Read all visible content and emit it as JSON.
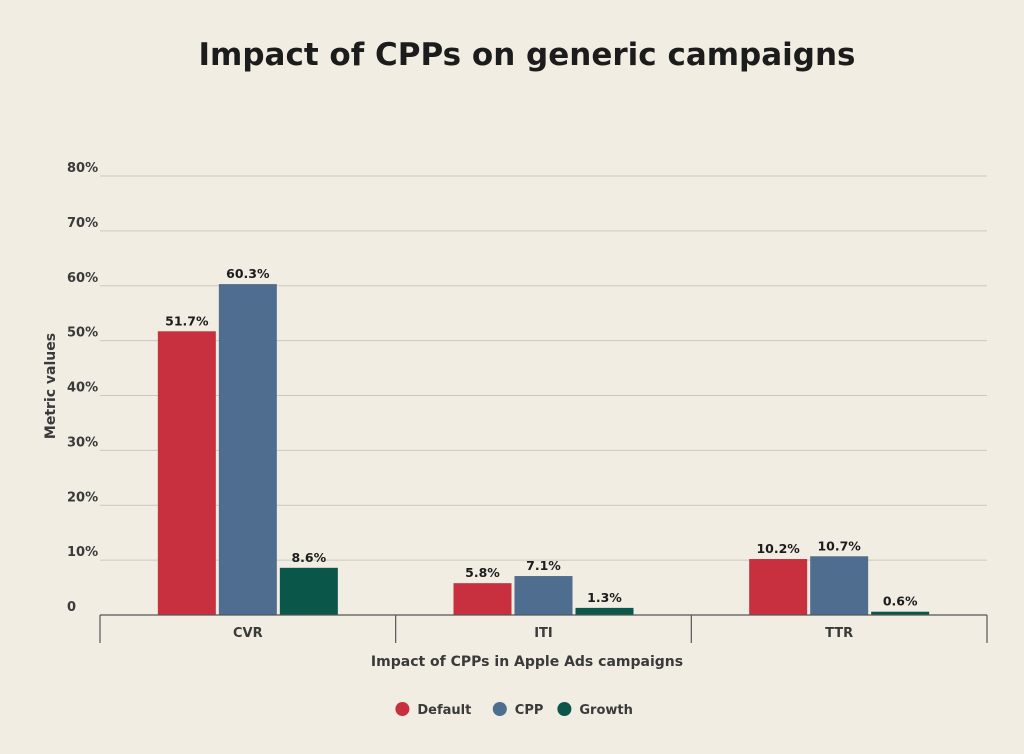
{
  "chart_data": {
    "type": "bar",
    "title": "Impact of CPPs on generic campaigns",
    "xlabel": "Impact of CPPs in Apple Ads campaigns",
    "ylabel": "Metric values",
    "categories": [
      "CVR",
      "ITI",
      "TTR"
    ],
    "y_ticks": [
      "0",
      "10%",
      "20%",
      "30%",
      "40%",
      "50%",
      "60%",
      "70%",
      "80%"
    ],
    "ylim": [
      0,
      80
    ],
    "grid": true,
    "legend_position": "bottom-center",
    "series": [
      {
        "name": "Default",
        "color": "#c8303f",
        "values": [
          51.7,
          5.8,
          10.2
        ],
        "labels": [
          "51.7%",
          "5.8%",
          "10.2%"
        ]
      },
      {
        "name": "CPP",
        "color": "#4f6d8f",
        "values": [
          60.3,
          7.1,
          10.7
        ],
        "labels": [
          "60.3%",
          "7.1%",
          "10.7%"
        ]
      },
      {
        "name": "Growth",
        "color": "#0a5648",
        "values": [
          8.6,
          1.3,
          0.6
        ],
        "labels": [
          "8.6%",
          "1.3%",
          "0.6%"
        ]
      }
    ]
  }
}
